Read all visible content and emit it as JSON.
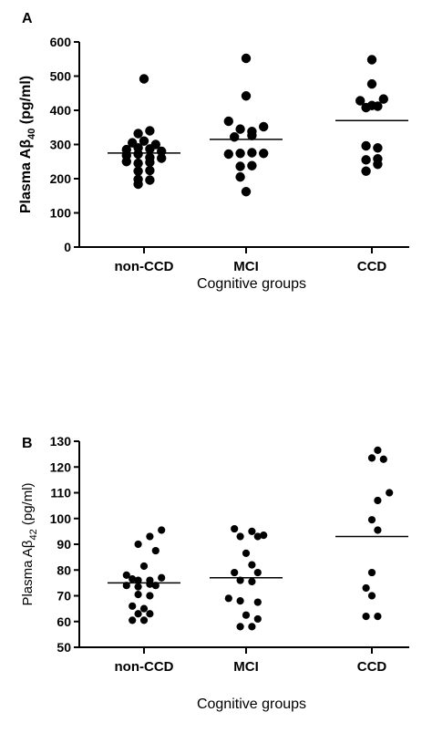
{
  "chart_data": [
    {
      "type": "scatter",
      "panel_label": "A",
      "ylabel": "Plasma Aβ40 (pg/ml)",
      "ylabel_parts": {
        "prefix": "Plasma A",
        "greek": "β",
        "sub": "40",
        "unit": " (pg/ml)"
      },
      "xlabel": "Cognitive groups",
      "categories": [
        "non-CCD",
        "MCI",
        "CCD"
      ],
      "ylim": [
        0,
        600
      ],
      "yticks": [
        "0",
        "100",
        "200",
        "300",
        "400",
        "500",
        "600"
      ],
      "grid": false,
      "series": [
        {
          "category": "non-CCD",
          "mean": 275,
          "points": [
            {
              "offset": 0,
              "y": 492
            },
            {
              "offset": -0.5,
              "y": 332
            },
            {
              "offset": 0.5,
              "y": 340
            },
            {
              "offset": -1,
              "y": 305
            },
            {
              "offset": 0,
              "y": 310
            },
            {
              "offset": 1,
              "y": 300
            },
            {
              "offset": -1.5,
              "y": 285
            },
            {
              "offset": -0.5,
              "y": 290
            },
            {
              "offset": 0.5,
              "y": 287
            },
            {
              "offset": 1.5,
              "y": 280
            },
            {
              "offset": -1.5,
              "y": 268
            },
            {
              "offset": -0.5,
              "y": 272
            },
            {
              "offset": 0.5,
              "y": 262
            },
            {
              "offset": -1.5,
              "y": 250
            },
            {
              "offset": -0.5,
              "y": 245
            },
            {
              "offset": 0.5,
              "y": 248
            },
            {
              "offset": 1.5,
              "y": 260
            },
            {
              "offset": -0.5,
              "y": 222
            },
            {
              "offset": 0.5,
              "y": 224
            },
            {
              "offset": -0.5,
              "y": 198
            },
            {
              "offset": 0.5,
              "y": 196
            },
            {
              "offset": -0.5,
              "y": 184
            }
          ]
        },
        {
          "category": "MCI",
          "mean": 315,
          "points": [
            {
              "offset": 0,
              "y": 552
            },
            {
              "offset": 0,
              "y": 442
            },
            {
              "offset": -1.5,
              "y": 368
            },
            {
              "offset": 1.5,
              "y": 352
            },
            {
              "offset": -0.5,
              "y": 345
            },
            {
              "offset": 0.5,
              "y": 338
            },
            {
              "offset": -1,
              "y": 322
            },
            {
              "offset": 0.5,
              "y": 326
            },
            {
              "offset": -1.5,
              "y": 272
            },
            {
              "offset": -0.5,
              "y": 274
            },
            {
              "offset": 0.5,
              "y": 276
            },
            {
              "offset": 1.5,
              "y": 274
            },
            {
              "offset": -0.5,
              "y": 236
            },
            {
              "offset": 0.5,
              "y": 238
            },
            {
              "offset": -0.5,
              "y": 205
            },
            {
              "offset": 0,
              "y": 162
            }
          ]
        },
        {
          "category": "CCD",
          "mean": 370,
          "points": [
            {
              "offset": 0,
              "y": 548
            },
            {
              "offset": 0,
              "y": 477
            },
            {
              "offset": 1,
              "y": 433
            },
            {
              "offset": -1,
              "y": 428
            },
            {
              "offset": 0,
              "y": 414
            },
            {
              "offset": -0.5,
              "y": 408
            },
            {
              "offset": 0.5,
              "y": 412
            },
            {
              "offset": -0.5,
              "y": 296
            },
            {
              "offset": 0.5,
              "y": 290
            },
            {
              "offset": -0.5,
              "y": 255
            },
            {
              "offset": 0.5,
              "y": 258
            },
            {
              "offset": 0.5,
              "y": 242
            },
            {
              "offset": -0.5,
              "y": 222
            }
          ]
        }
      ]
    },
    {
      "type": "scatter",
      "panel_label": "B",
      "ylabel": "Plasma Aβ42 (pg/ml)",
      "ylabel_parts": {
        "prefix": "Plasma A",
        "greek": "β",
        "sub": "42",
        "unit": " (pg/ml)"
      },
      "xlabel": "Cognitive groups",
      "categories": [
        "non-CCD",
        "MCI",
        "CCD"
      ],
      "ylim": [
        50,
        130
      ],
      "yticks": [
        "50",
        "60",
        "70",
        "80",
        "90",
        "100",
        "110",
        "120",
        "130"
      ],
      "grid": false,
      "series": [
        {
          "category": "non-CCD",
          "mean": 75,
          "points": [
            {
              "offset": 1.5,
              "y": 95.5
            },
            {
              "offset": 0.5,
              "y": 93
            },
            {
              "offset": -0.5,
              "y": 90
            },
            {
              "offset": 1,
              "y": 87.5
            },
            {
              "offset": 0,
              "y": 81.5
            },
            {
              "offset": -1.5,
              "y": 78
            },
            {
              "offset": -1,
              "y": 76.5
            },
            {
              "offset": -0.5,
              "y": 76
            },
            {
              "offset": 0.5,
              "y": 76
            },
            {
              "offset": 1.5,
              "y": 77
            },
            {
              "offset": -1.5,
              "y": 74
            },
            {
              "offset": -0.5,
              "y": 73.5
            },
            {
              "offset": 0.5,
              "y": 74.5
            },
            {
              "offset": 1,
              "y": 74
            },
            {
              "offset": -0.5,
              "y": 70.5
            },
            {
              "offset": 0.5,
              "y": 70
            },
            {
              "offset": -1,
              "y": 66
            },
            {
              "offset": 0,
              "y": 65
            },
            {
              "offset": -0.5,
              "y": 63
            },
            {
              "offset": 0.5,
              "y": 63
            },
            {
              "offset": -1,
              "y": 60.5
            },
            {
              "offset": 0,
              "y": 60.5
            }
          ]
        },
        {
          "category": "MCI",
          "mean": 77,
          "points": [
            {
              "offset": -1,
              "y": 96
            },
            {
              "offset": 0.5,
              "y": 95
            },
            {
              "offset": -0.5,
              "y": 93
            },
            {
              "offset": 1,
              "y": 93
            },
            {
              "offset": 1.5,
              "y": 93.5
            },
            {
              "offset": 0,
              "y": 86.5
            },
            {
              "offset": 0.5,
              "y": 82
            },
            {
              "offset": -1,
              "y": 79
            },
            {
              "offset": 1,
              "y": 79
            },
            {
              "offset": -0.5,
              "y": 76
            },
            {
              "offset": 0.5,
              "y": 75.5
            },
            {
              "offset": -1.5,
              "y": 69
            },
            {
              "offset": -0.5,
              "y": 68
            },
            {
              "offset": 1,
              "y": 67.5
            },
            {
              "offset": 0,
              "y": 62.5
            },
            {
              "offset": 1,
              "y": 61
            },
            {
              "offset": -0.5,
              "y": 58
            },
            {
              "offset": 0.5,
              "y": 58
            }
          ]
        },
        {
          "category": "CCD",
          "mean": 93,
          "points": [
            {
              "offset": 0.5,
              "y": 126.5
            },
            {
              "offset": 0,
              "y": 123.5
            },
            {
              "offset": 1,
              "y": 123
            },
            {
              "offset": 1.5,
              "y": 110
            },
            {
              "offset": 0.5,
              "y": 107
            },
            {
              "offset": 0,
              "y": 99.5
            },
            {
              "offset": 0.5,
              "y": 95.5
            },
            {
              "offset": 0,
              "y": 79
            },
            {
              "offset": -0.5,
              "y": 73
            },
            {
              "offset": 0,
              "y": 70
            },
            {
              "offset": -0.5,
              "y": 62
            },
            {
              "offset": 0.5,
              "y": 62
            }
          ]
        }
      ]
    }
  ]
}
